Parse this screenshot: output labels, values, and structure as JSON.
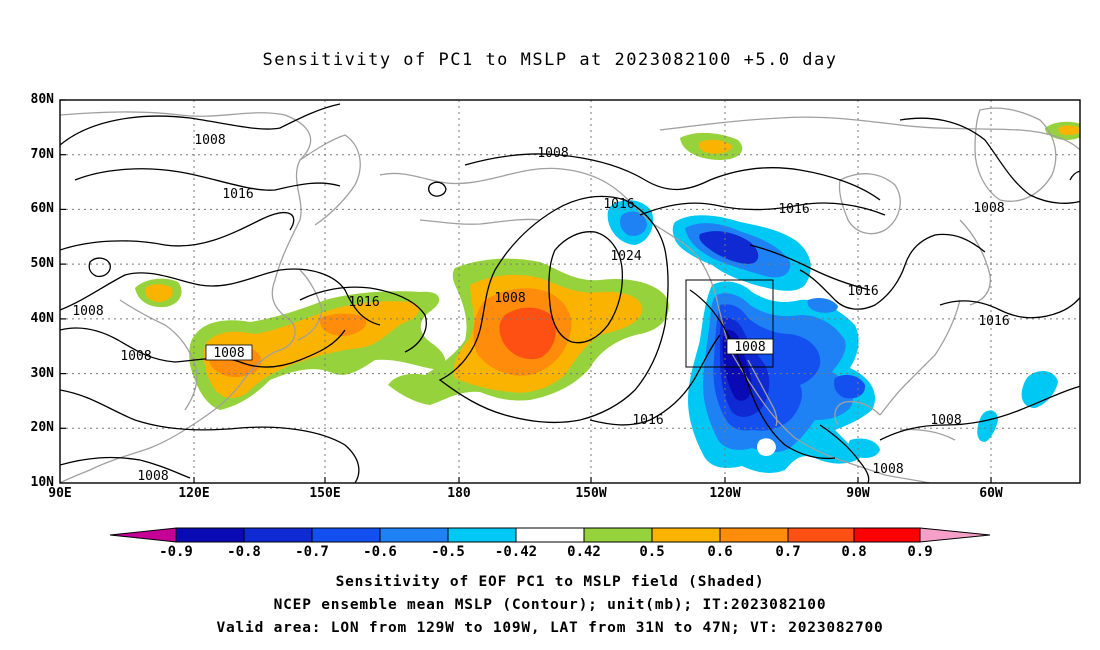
{
  "title": "Sensitivity of PC1 to MSLP at 2023082100 +5.0 day",
  "lat_labels": [
    "80N",
    "70N",
    "60N",
    "50N",
    "40N",
    "30N",
    "20N",
    "10N"
  ],
  "lon_labels": [
    "90E",
    "120E",
    "150E",
    "180",
    "150W",
    "120W",
    "90W",
    "60W"
  ],
  "contour_labels": [
    "1008",
    "1016",
    "1008",
    "1016",
    "1024",
    "1008",
    "1016",
    "1016",
    "1008",
    "1016",
    "1008",
    "1008",
    "1016",
    "1016",
    "1008",
    "1008",
    "1008",
    "1008"
  ],
  "box_label": "1008",
  "colorbar": {
    "labels": [
      "-0.9",
      "-0.8",
      "-0.7",
      "-0.6",
      "-0.5",
      "-0.42",
      "0.42",
      "0.5",
      "0.6",
      "0.7",
      "0.8",
      "0.9"
    ],
    "colors": [
      "#c40096",
      "#0a0ab4",
      "#0f2ad2",
      "#1450f0",
      "#1e82f5",
      "#00c8f5",
      "#ffffff",
      "#96d23c",
      "#fab400",
      "#ff8c0a",
      "#ff5014",
      "#ff0000",
      "#f5a0c8"
    ]
  },
  "footer": {
    "line1": "Sensitivity of EOF PC1 to MSLP field (Shaded)",
    "line2": "NCEP ensemble mean MSLP (Contour); unit(mb); IT:2023082100",
    "line3": "Valid area: LON from 129W to 109W, LAT from 31N to 47N; VT: 2023082700"
  }
}
